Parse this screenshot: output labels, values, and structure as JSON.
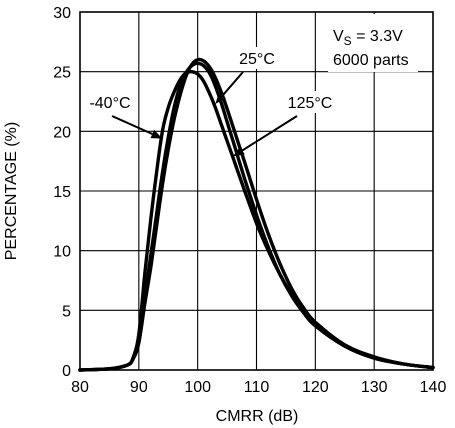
{
  "chart_data": {
    "type": "line",
    "title": "",
    "xlabel": "CMRR (dB)",
    "ylabel": "PERCENTAGE (%)",
    "xlim": [
      80,
      140
    ],
    "ylim": [
      0,
      30
    ],
    "xticks": [
      "80",
      "90",
      "100",
      "110",
      "120",
      "130",
      "140"
    ],
    "yticks": [
      "0",
      "5",
      "10",
      "15",
      "20",
      "25",
      "30"
    ],
    "grid": true,
    "legend": "none",
    "conditions": {
      "vs_prefix": "V",
      "vs_sub": "S",
      "vs_suffix": " = 3.3V",
      "parts": "6000 parts"
    },
    "annotations": [
      {
        "text": "-40°C",
        "series": 0
      },
      {
        "text": "25°C",
        "series": 1
      },
      {
        "text": "125°C",
        "series": 2
      }
    ],
    "series": [
      {
        "name": "-40°C",
        "x": [
          80,
          85,
          88,
          89,
          90,
          91,
          92,
          93,
          94,
          95,
          96,
          97,
          98,
          99,
          100,
          101,
          102,
          103,
          104,
          105,
          106,
          107,
          108,
          110,
          112,
          114,
          116,
          118,
          120,
          125,
          130,
          135,
          140
        ],
        "y": [
          0,
          0.1,
          0.4,
          1,
          3,
          8,
          12.5,
          16.5,
          20,
          22,
          23.3,
          24.3,
          24.9,
          25,
          24.8,
          24.2,
          23.2,
          22,
          20.6,
          19.2,
          17.8,
          16.4,
          15,
          12.3,
          10,
          8,
          6.3,
          4.9,
          3.8,
          2,
          1,
          0.5,
          0.2
        ]
      },
      {
        "name": "25°C",
        "x": [
          80,
          85,
          88,
          89,
          90,
          91,
          92,
          93,
          94,
          95,
          96,
          97,
          98,
          99,
          100,
          101,
          102,
          103,
          104,
          105,
          106,
          107,
          108,
          110,
          112,
          114,
          116,
          118,
          120,
          125,
          130,
          135,
          140
        ],
        "y": [
          0,
          0.1,
          0.4,
          0.9,
          2.3,
          6,
          9.5,
          13,
          16.5,
          19.5,
          22,
          23.8,
          24.9,
          25.5,
          25.7,
          25.5,
          24.9,
          23.8,
          22.4,
          20.8,
          19.2,
          17.6,
          16,
          13,
          10.3,
          8,
          6.2,
          4.8,
          3.7,
          2,
          1,
          0.5,
          0.2
        ]
      },
      {
        "name": "125°C",
        "x": [
          80,
          85,
          88,
          89,
          90,
          91,
          92,
          93,
          94,
          95,
          96,
          97,
          98,
          99,
          100,
          101,
          102,
          103,
          104,
          105,
          106,
          107,
          108,
          110,
          112,
          114,
          116,
          118,
          120,
          125,
          130,
          135,
          140
        ],
        "y": [
          0,
          0.1,
          0.4,
          0.9,
          2.3,
          5.5,
          8.5,
          12,
          15.5,
          18.5,
          21,
          23,
          24.6,
          25.6,
          26,
          25.9,
          25.4,
          24.5,
          23.3,
          21.9,
          20.4,
          18.9,
          17.4,
          14.3,
          11.4,
          8.9,
          6.8,
          5.2,
          4,
          2.1,
          1.1,
          0.5,
          0.2
        ]
      }
    ]
  }
}
